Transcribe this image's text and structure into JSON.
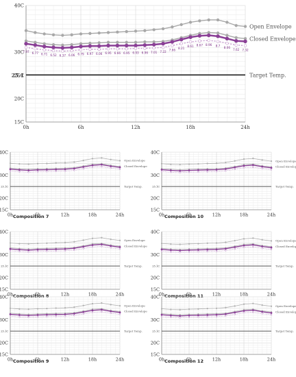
{
  "chart_data": [
    {
      "type": "line",
      "x": [
        0,
        1,
        2,
        3,
        4,
        5,
        6,
        7,
        8,
        9,
        10,
        11,
        12,
        13,
        14,
        15,
        16,
        17,
        18,
        19,
        20,
        21,
        22,
        23,
        24
      ],
      "xticks": [
        0,
        6,
        12,
        18,
        24
      ],
      "xtick_labels": [
        "0h",
        "6h",
        "12h",
        "18h",
        "24h"
      ],
      "ylim": [
        15,
        40
      ],
      "yticks": [
        15,
        20,
        25,
        30,
        35,
        40
      ],
      "ytick_labels": [
        "15C",
        "20C",
        "25C",
        "30C",
        "",
        "40C"
      ],
      "grid": true,
      "series": [
        {
          "name": "Open Envelope",
          "color": "#a8a8a8",
          "values": [
            34.6,
            34.2,
            33.9,
            33.7,
            33.6,
            33.7,
            33.9,
            34.0,
            34.1,
            34.2,
            34.3,
            34.4,
            34.5,
            34.6,
            34.8,
            35.0,
            35.4,
            35.9,
            36.4,
            36.7,
            36.9,
            36.9,
            36.4,
            35.7,
            35.5
          ]
        },
        {
          "name": "Closed Envelope",
          "color": "#a8a8a8",
          "values": [
            32.4,
            32.1,
            31.8,
            31.6,
            31.5,
            31.6,
            31.8,
            31.9,
            32.0,
            32.1,
            32.1,
            32.1,
            32.1,
            32.2,
            32.2,
            32.3,
            32.6,
            33.1,
            33.6,
            34.0,
            34.2,
            34.1,
            33.6,
            33.1,
            32.9
          ]
        },
        {
          "name": "",
          "color": "#8a3f96",
          "values": [
            31.8,
            31.5,
            31.2,
            31.0,
            30.9,
            31.0,
            31.2,
            31.3,
            31.3,
            31.4,
            31.4,
            31.4,
            31.4,
            31.5,
            31.6,
            31.8,
            32.2,
            32.7,
            33.2,
            33.5,
            33.6,
            33.4,
            32.9,
            32.4,
            32.3
          ]
        },
        {
          "name": "",
          "color": "#c79ccf",
          "dashed": true,
          "values": [
            31.0,
            30.7,
            30.5,
            30.3,
            30.2,
            30.3,
            30.5,
            30.6,
            30.6,
            30.7,
            30.7,
            30.7,
            30.8,
            30.8,
            30.9,
            31.0,
            31.4,
            31.8,
            32.2,
            32.4,
            32.5,
            32.3,
            31.9,
            31.5,
            31.4
          ]
        }
      ],
      "point_labels": [
        {
          "x": 0,
          "y": 31.0,
          "text": "7.97"
        },
        {
          "x": 1,
          "y": 30.7,
          "text": "6.77"
        },
        {
          "x": 2,
          "y": 30.5,
          "text": "6.71"
        },
        {
          "x": 3,
          "y": 30.3,
          "text": "6.52"
        },
        {
          "x": 4,
          "y": 30.2,
          "text": "6.37"
        },
        {
          "x": 5,
          "y": 30.3,
          "text": "6.06"
        },
        {
          "x": 6,
          "y": 30.5,
          "text": "6.79"
        },
        {
          "x": 7,
          "y": 30.6,
          "text": "6.97"
        },
        {
          "x": 8,
          "y": 30.6,
          "text": "6.06"
        },
        {
          "x": 9,
          "y": 30.7,
          "text": "6.95"
        },
        {
          "x": 10,
          "y": 30.7,
          "text": "6.66"
        },
        {
          "x": 11,
          "y": 30.7,
          "text": "6.95"
        },
        {
          "x": 12,
          "y": 30.8,
          "text": "6.93"
        },
        {
          "x": 13,
          "y": 30.8,
          "text": "6.96"
        },
        {
          "x": 14,
          "y": 30.9,
          "text": "7.01"
        },
        {
          "x": 15,
          "y": 31.0,
          "text": "7.22"
        },
        {
          "x": 16,
          "y": 31.4,
          "text": "7.66"
        },
        {
          "x": 17,
          "y": 31.8,
          "text": "8.21"
        },
        {
          "x": 18,
          "y": 32.2,
          "text": "8.61"
        },
        {
          "x": 19,
          "y": 32.4,
          "text": "8.67"
        },
        {
          "x": 20,
          "y": 32.5,
          "text": "8.96"
        },
        {
          "x": 21,
          "y": 32.3,
          "text": "8.7"
        },
        {
          "x": 22,
          "y": 31.9,
          "text": "8.06"
        },
        {
          "x": 23,
          "y": 31.5,
          "text": "7.62"
        },
        {
          "x": 24,
          "y": 31.4,
          "text": "7.32"
        }
      ],
      "target": {
        "value": 25.1,
        "label_value": "25.1",
        "label": "Target Temp.",
        "color": "#222222"
      }
    },
    {
      "type": "line",
      "title": "Composition 7",
      "x": [
        0,
        2,
        4,
        6,
        8,
        10,
        12,
        14,
        16,
        18,
        20,
        22,
        24
      ],
      "xticks": [
        0,
        6,
        12,
        18,
        24
      ],
      "xtick_labels": [
        "0h",
        "6h",
        "12h",
        "18h",
        "24h"
      ],
      "ylim": [
        15,
        40
      ],
      "yticks": [
        15,
        20,
        25,
        30,
        35,
        40
      ],
      "ytick_labels": [
        "15C",
        "20C",
        "",
        "30C",
        "",
        "40C"
      ],
      "grid": true,
      "series": [
        {
          "name": "Open Envelope",
          "color": "#b0b0b0",
          "values": [
            35.2,
            34.9,
            34.8,
            35.0,
            35.1,
            35.3,
            35.4,
            35.7,
            36.4,
            37.2,
            37.5,
            36.8,
            36.3
          ]
        },
        {
          "name": "Closed Envelope",
          "color": "#b0b0b0",
          "values": [
            33.1,
            32.8,
            32.6,
            32.8,
            32.9,
            33.0,
            33.1,
            33.3,
            34.0,
            34.8,
            35.0,
            34.3,
            33.8
          ]
        },
        {
          "name": "",
          "color": "#8a3f96",
          "values": [
            32.6,
            32.3,
            32.1,
            32.3,
            32.4,
            32.5,
            32.6,
            32.9,
            33.6,
            34.3,
            34.6,
            33.9,
            33.4
          ]
        },
        {
          "name": "",
          "color": "#c79ccf",
          "dashed": true,
          "values": [
            31.8,
            31.5,
            31.3,
            31.5,
            31.6,
            31.7,
            31.8,
            32.1,
            32.8,
            33.5,
            33.7,
            33.1,
            32.6
          ]
        }
      ],
      "target": {
        "value": 25.1,
        "label_value": "25.1C",
        "label": "Target Temp.",
        "color": "#444444"
      }
    },
    {
      "type": "line",
      "title": "Composition 10",
      "x": [
        0,
        2,
        4,
        6,
        8,
        10,
        12,
        14,
        16,
        18,
        20,
        22,
        24
      ],
      "xticks": [
        0,
        6,
        12,
        18,
        24
      ],
      "xtick_labels": [
        "0h",
        "6h",
        "12h",
        "18h",
        "24h"
      ],
      "ylim": [
        15,
        40
      ],
      "yticks": [
        15,
        20,
        25,
        30,
        35,
        40
      ],
      "ytick_labels": [
        "15C",
        "20C",
        "",
        "30C",
        "",
        "40C"
      ],
      "grid": true,
      "series": [
        {
          "name": "Open Envelope",
          "color": "#b0b0b0",
          "values": [
            35.0,
            34.7,
            34.6,
            34.8,
            34.9,
            35.1,
            35.2,
            35.5,
            36.2,
            37.0,
            37.3,
            36.6,
            36.1
          ]
        },
        {
          "name": "Closed Envelope",
          "color": "#b0b0b0",
          "values": [
            32.9,
            32.6,
            32.4,
            32.6,
            32.7,
            32.8,
            32.9,
            33.1,
            33.8,
            34.6,
            34.8,
            34.1,
            33.6
          ]
        },
        {
          "name": "",
          "color": "#8a3f96",
          "values": [
            32.4,
            32.1,
            31.9,
            32.1,
            32.2,
            32.3,
            32.4,
            32.7,
            33.4,
            34.1,
            34.4,
            33.7,
            33.2
          ]
        },
        {
          "name": "",
          "color": "#c79ccf",
          "dashed": true,
          "values": [
            31.6,
            31.3,
            31.1,
            31.3,
            31.4,
            31.5,
            31.6,
            31.9,
            32.6,
            33.3,
            33.5,
            32.9,
            32.4
          ]
        }
      ],
      "target": {
        "value": 25.1,
        "label_value": "25.1C",
        "label": "Target Temp.",
        "color": "#444444"
      }
    },
    {
      "type": "line",
      "title": "Composition 8",
      "x": [
        0,
        2,
        4,
        6,
        8,
        10,
        12,
        14,
        16,
        18,
        20,
        22,
        24
      ],
      "xticks": [
        0,
        6,
        12,
        18,
        24
      ],
      "xtick_labels": [
        "0h",
        "6h",
        "12h",
        "18h",
        "24h"
      ],
      "ylim": [
        15,
        40
      ],
      "yticks": [
        15,
        20,
        25,
        30,
        35,
        40
      ],
      "ytick_labels": [
        "15C",
        "20C",
        "",
        "30C",
        "",
        "40C"
      ],
      "grid": true,
      "series": [
        {
          "name": "Open Envelope",
          "color": "#b0b0b0",
          "values": [
            35.1,
            34.8,
            34.7,
            34.9,
            35.0,
            35.2,
            35.3,
            35.6,
            36.3,
            37.1,
            37.4,
            36.7,
            36.2
          ]
        },
        {
          "name": "Closed Envelope",
          "color": "#b0b0b0",
          "values": [
            33.0,
            32.7,
            32.5,
            32.7,
            32.8,
            32.9,
            33.0,
            33.2,
            33.9,
            34.7,
            34.9,
            34.2,
            33.7
          ]
        },
        {
          "name": "",
          "color": "#8a3f96",
          "values": [
            32.5,
            32.2,
            32.0,
            32.2,
            32.3,
            32.4,
            32.5,
            32.8,
            33.5,
            34.2,
            34.5,
            33.8,
            33.3
          ]
        },
        {
          "name": "",
          "color": "#c79ccf",
          "dashed": true,
          "values": [
            31.7,
            31.4,
            31.2,
            31.4,
            31.5,
            31.6,
            31.7,
            32.0,
            32.7,
            33.4,
            33.6,
            33.0,
            32.5
          ]
        }
      ],
      "target": {
        "value": 25.1,
        "label_value": "25.1C",
        "label": "Target Temp.",
        "color": "#444444"
      }
    },
    {
      "type": "line",
      "title": "Composition 11",
      "x": [
        0,
        2,
        4,
        6,
        8,
        10,
        12,
        14,
        16,
        18,
        20,
        22,
        24
      ],
      "xticks": [
        0,
        6,
        12,
        18,
        24
      ],
      "xtick_labels": [
        "0h",
        "6h",
        "12h",
        "18h",
        "24h"
      ],
      "ylim": [
        15,
        40
      ],
      "yticks": [
        15,
        20,
        25,
        30,
        35,
        40
      ],
      "ytick_labels": [
        "15C",
        "20C",
        "",
        "30C",
        "",
        "40C"
      ],
      "grid": true,
      "series": [
        {
          "name": "Open Envelope",
          "color": "#b0b0b0",
          "values": [
            34.9,
            34.6,
            34.5,
            34.7,
            34.8,
            35.0,
            35.1,
            35.4,
            36.1,
            36.9,
            37.2,
            36.5,
            36.0
          ]
        },
        {
          "name": "Closed Envelope",
          "color": "#b0b0b0",
          "values": [
            32.8,
            32.5,
            32.3,
            32.5,
            32.6,
            32.7,
            32.8,
            33.0,
            33.7,
            34.5,
            34.7,
            34.0,
            33.5
          ]
        },
        {
          "name": "",
          "color": "#8a3f96",
          "values": [
            32.3,
            32.0,
            31.8,
            32.0,
            32.1,
            32.2,
            32.3,
            32.6,
            33.3,
            34.0,
            34.3,
            33.6,
            33.1
          ]
        },
        {
          "name": "",
          "color": "#c79ccf",
          "dashed": true,
          "values": [
            31.5,
            31.2,
            31.0,
            31.2,
            31.3,
            31.4,
            31.5,
            31.8,
            32.5,
            33.2,
            33.4,
            32.8,
            32.3
          ]
        }
      ],
      "target": {
        "value": 25.1,
        "label_value": "25.1C",
        "label": "Target Temp.",
        "color": "#444444"
      }
    },
    {
      "type": "line",
      "title": "Composition 9",
      "x": [
        0,
        2,
        4,
        6,
        8,
        10,
        12,
        14,
        16,
        18,
        20,
        22,
        24
      ],
      "xticks": [
        0,
        6,
        12,
        18,
        24
      ],
      "xtick_labels": [
        "0h",
        "6h",
        "12h",
        "18h",
        "24h"
      ],
      "ylim": [
        15,
        40
      ],
      "yticks": [
        15,
        20,
        25,
        30,
        35,
        40
      ],
      "ytick_labels": [
        "15C",
        "20C",
        "",
        "30C",
        "",
        "40C"
      ],
      "grid": true,
      "series": [
        {
          "name": "Open Envelope",
          "color": "#b0b0b0",
          "values": [
            35.0,
            34.7,
            34.6,
            34.8,
            34.9,
            35.1,
            35.2,
            35.5,
            36.2,
            37.0,
            37.3,
            36.6,
            36.1
          ]
        },
        {
          "name": "Closed Envelope",
          "color": "#b0b0b0",
          "values": [
            32.9,
            32.6,
            32.4,
            32.6,
            32.7,
            32.8,
            32.9,
            33.1,
            33.8,
            34.6,
            34.8,
            34.1,
            33.6
          ]
        },
        {
          "name": "",
          "color": "#8a3f96",
          "values": [
            32.4,
            32.1,
            31.9,
            32.1,
            32.2,
            32.3,
            32.4,
            32.7,
            33.4,
            34.1,
            34.4,
            33.7,
            33.2
          ]
        },
        {
          "name": "",
          "color": "#c79ccf",
          "dashed": true,
          "values": [
            31.6,
            31.3,
            31.1,
            31.3,
            31.4,
            31.5,
            31.6,
            31.9,
            32.6,
            33.3,
            33.5,
            32.9,
            32.4
          ]
        }
      ],
      "target": {
        "value": 25.1,
        "label_value": "25.1C",
        "label": "Target Temp.",
        "color": "#444444"
      }
    },
    {
      "type": "line",
      "title": "Composition 12",
      "x": [
        0,
        2,
        4,
        6,
        8,
        10,
        12,
        14,
        16,
        18,
        20,
        22,
        24
      ],
      "xticks": [
        0,
        6,
        12,
        18,
        24
      ],
      "xtick_labels": [
        "0h",
        "6h",
        "12h",
        "18h",
        "24h"
      ],
      "ylim": [
        15,
        40
      ],
      "yticks": [
        15,
        20,
        25,
        30,
        35,
        40
      ],
      "ytick_labels": [
        "15C",
        "20C",
        "",
        "30C",
        "",
        "40C"
      ],
      "grid": true,
      "series": [
        {
          "name": "Open Envelope",
          "color": "#b0b0b0",
          "values": [
            34.8,
            34.5,
            34.4,
            34.6,
            34.7,
            34.9,
            35.0,
            35.3,
            36.0,
            36.8,
            37.1,
            36.4,
            35.9
          ]
        },
        {
          "name": "Closed Envelope",
          "color": "#b0b0b0",
          "values": [
            32.7,
            32.4,
            32.2,
            32.4,
            32.5,
            32.6,
            32.7,
            32.9,
            33.6,
            34.4,
            34.6,
            33.9,
            33.4
          ]
        },
        {
          "name": "",
          "color": "#8a3f96",
          "values": [
            32.2,
            31.9,
            31.7,
            31.9,
            32.0,
            32.1,
            32.2,
            32.5,
            33.2,
            33.9,
            34.2,
            33.5,
            33.0
          ]
        },
        {
          "name": "",
          "color": "#c79ccf",
          "dashed": true,
          "values": [
            31.4,
            31.1,
            30.9,
            31.1,
            31.2,
            31.3,
            31.4,
            31.7,
            32.4,
            33.1,
            33.3,
            32.7,
            32.2
          ]
        }
      ],
      "target": {
        "value": 25.1,
        "label_value": "25.1C",
        "label": "Target Temp.",
        "color": "#444444"
      }
    }
  ]
}
